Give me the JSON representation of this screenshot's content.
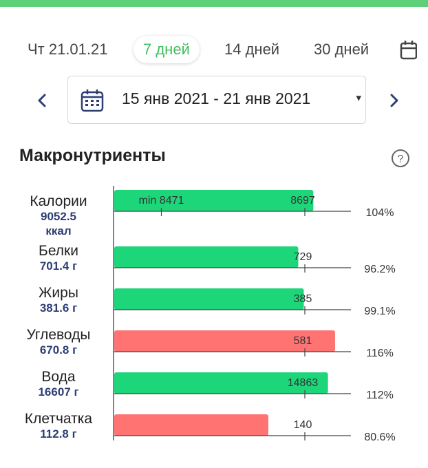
{
  "header": {
    "tabs": [
      {
        "label": "Чт 21.01.21",
        "active": false
      },
      {
        "label": "7 дней",
        "active": true
      },
      {
        "label": "14 дней",
        "active": false
      },
      {
        "label": "30 дней",
        "active": false
      }
    ],
    "calendar_tab_icon": "calendar-icon"
  },
  "date_range": {
    "label": "15 янв 2021 - 21 янв 2021",
    "prev_icon": "chevron-left-icon",
    "next_icon": "chevron-right-icon",
    "calendar_icon": "calendar-icon",
    "caret": "▾"
  },
  "section": {
    "title": "Макронутриенты",
    "help_icon": "help-circle-icon"
  },
  "colors": {
    "accent": "#3fbf5f",
    "bar_ok": "#1ed67a",
    "bar_over": "#ff7373",
    "value_text": "#2d3e75",
    "top_strip": "#5fd07a"
  },
  "chart_data": {
    "type": "bar",
    "orientation": "horizontal",
    "categories": [
      "Калории",
      "Белки",
      "Жиры",
      "Углеводы",
      "Вода",
      "Клетчатка"
    ],
    "actual_labels": [
      "9052.5 ккал",
      "701.4 г",
      "381.6 г",
      "670.8 г",
      "16607 г",
      "112.8 г"
    ],
    "actual_values": [
      9052.5,
      701.4,
      381.6,
      670.8,
      16607,
      112.8
    ],
    "targets": [
      8697,
      729,
      385,
      581,
      14863,
      140
    ],
    "target_labels": [
      "8697",
      "729",
      "385",
      "581",
      "14863",
      "140"
    ],
    "min_labels": [
      "min 8471",
      "",
      "",
      "",
      "",
      ""
    ],
    "percents": [
      "104%",
      "96.2%",
      "99.1%",
      "116%",
      "112%",
      "80.6%"
    ],
    "status": [
      "ok",
      "ok",
      "ok",
      "over",
      "ok",
      "over"
    ],
    "grid": false,
    "legend": "none"
  }
}
